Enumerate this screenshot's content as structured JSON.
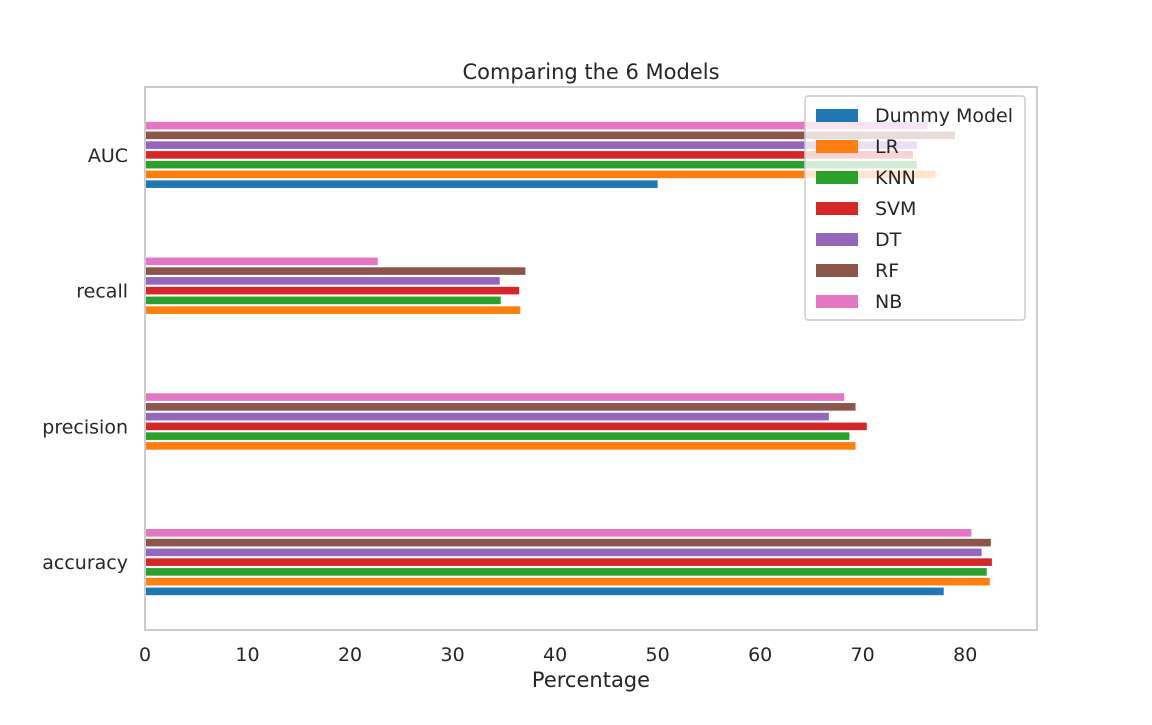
{
  "chart_data": {
    "type": "bar",
    "orientation": "horizontal",
    "title": "Comparing the 6 Models",
    "xlabel": "Percentage",
    "ylabel": "",
    "xlim": [
      0,
      87
    ],
    "xticks": [
      0,
      10,
      20,
      30,
      40,
      50,
      60,
      70,
      80
    ],
    "grid": false,
    "legend_position": "top-right",
    "categories": [
      "accuracy",
      "precision",
      "recall",
      "AUC"
    ],
    "series": [
      {
        "name": "Dummy Model",
        "color": "#1f77b4",
        "values": [
          77.9,
          0,
          0,
          50.0
        ]
      },
      {
        "name": "LR",
        "color": "#ff7f0e",
        "values": [
          82.4,
          69.3,
          36.6,
          77.1
        ]
      },
      {
        "name": "KNN",
        "color": "#2ca02c",
        "values": [
          82.1,
          68.7,
          34.7,
          75.3
        ]
      },
      {
        "name": "SVM",
        "color": "#d62728",
        "values": [
          82.6,
          70.4,
          36.5,
          74.9
        ]
      },
      {
        "name": "DT",
        "color": "#9467bd",
        "values": [
          81.6,
          66.7,
          34.6,
          75.3
        ]
      },
      {
        "name": "RF",
        "color": "#8c564b",
        "values": [
          82.5,
          69.3,
          37.1,
          79.0
        ]
      },
      {
        "name": "NB",
        "color": "#e377c2",
        "values": [
          80.6,
          68.2,
          22.7,
          76.3
        ]
      }
    ]
  }
}
